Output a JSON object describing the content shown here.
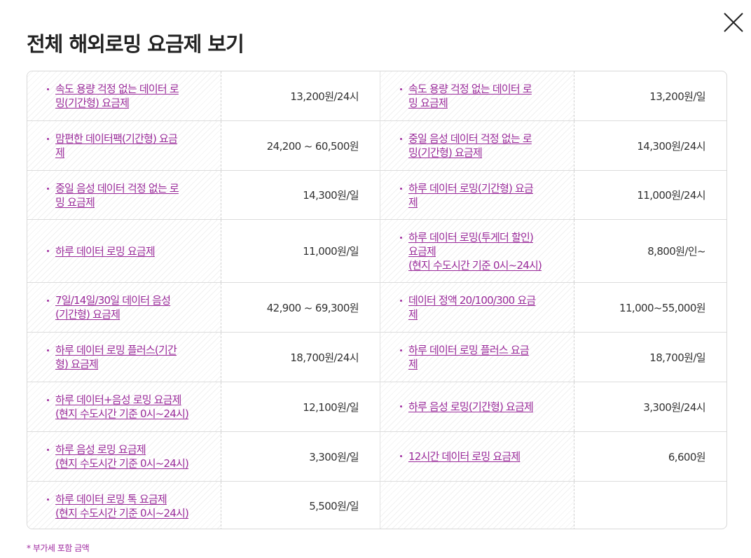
{
  "modal": {
    "title": "전체 해외로밍 요금제 보기",
    "close_icon": "close-icon",
    "footnote": "* 부가세 포함 금액"
  },
  "rows": [
    {
      "left": {
        "name": "속도 용량 걱정 없는 데이터 로\n밍(기간형) 요금제",
        "price": "13,200원/24시"
      },
      "right": {
        "name": "속도 용량 걱정 없는 데이터 로\n밍 요금제",
        "price": "13,200원/일"
      }
    },
    {
      "left": {
        "name": "맘편한 데이터팩(기간형) 요금\n제",
        "price": "24,200 ~ 60,500원"
      },
      "right": {
        "name": "중일 음성 데이터 걱정 없는 로\n밍(기간형) 요금제",
        "price": "14,300원/24시"
      }
    },
    {
      "left": {
        "name": "중일 음성 데이터 걱정 없는 로\n밍 요금제",
        "price": "14,300원/일"
      },
      "right": {
        "name": "하루 데이터 로밍(기간형) 요금\n제",
        "price": "11,000원/24시"
      }
    },
    {
      "left": {
        "name": "하루 데이터 로밍 요금제",
        "price": "11,000원/일"
      },
      "right": {
        "name": "하루 데이터 로밍(투게더 할인)\n요금제\n(현지 수도시간 기준 0시~24시)",
        "price": "8,800원/인~"
      }
    },
    {
      "left": {
        "name": "7일/14일/30일 데이터 음성\n(기간형) 요금제",
        "price": "42,900 ~ 69,300원"
      },
      "right": {
        "name": "데이터 정액 20/100/300 요금\n제",
        "price": "11,000~55,000원"
      }
    },
    {
      "left": {
        "name": "하루 데이터 로밍 플러스(기간\n형) 요금제",
        "price": "18,700원/24시"
      },
      "right": {
        "name": "하루 데이터 로밍 플러스 요금\n제",
        "price": "18,700원/일"
      }
    },
    {
      "left": {
        "name": "하루 데이터+음성 로밍 요금제\n(현지 수도시간 기준 0시~24시)",
        "price": "12,100원/일"
      },
      "right": {
        "name": "하루 음성 로밍(기간형) 요금제",
        "price": "3,300원/24시"
      }
    },
    {
      "left": {
        "name": "하루 음성 로밍 요금제\n(현지 수도시간 기준 0시~24시)",
        "price": "3,300원/일"
      },
      "right": {
        "name": "12시간 데이터 로밍 요금제",
        "price": "6,600원"
      }
    },
    {
      "left": {
        "name": "하루 데이터 로밍 톡 요금제\n(현지 수도시간 기준 0시~24시)",
        "price": "5,500원/일"
      },
      "right": {
        "name": "",
        "price": ""
      }
    }
  ]
}
